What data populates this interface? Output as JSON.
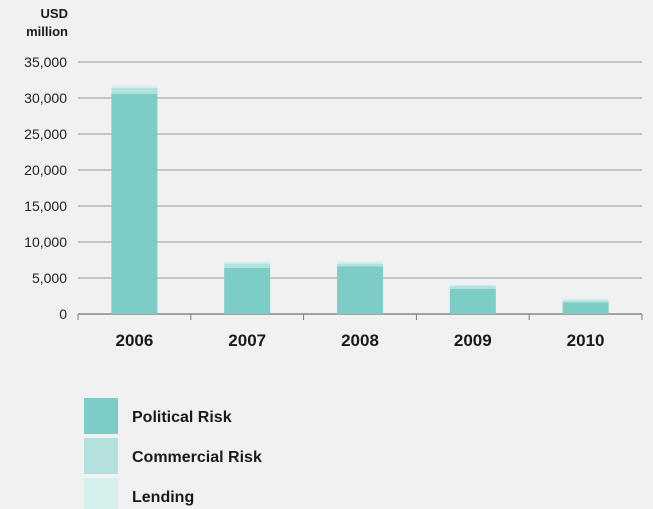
{
  "chart_data": {
    "type": "bar",
    "stacked": true,
    "y_unit_label": [
      "USD",
      "million"
    ],
    "categories": [
      "2006",
      "2007",
      "2008",
      "2009",
      "2010"
    ],
    "ylim": [
      0,
      35000
    ],
    "yticks": [
      0,
      5000,
      10000,
      15000,
      20000,
      25000,
      30000,
      35000
    ],
    "ytick_labels": [
      "0",
      "5,000",
      "10,000",
      "15,000",
      "20,000",
      "25,000",
      "30,000",
      "35,000"
    ],
    "grid": true,
    "legend_position": "bottom-left",
    "series": [
      {
        "name": "Political Risk",
        "color": "#7ccdc6",
        "values": [
          30600,
          6400,
          6600,
          3500,
          1600
        ]
      },
      {
        "name": "Commercial Risk",
        "color": "#b3e2de",
        "values": [
          800,
          600,
          400,
          400,
          300
        ]
      },
      {
        "name": "Lending",
        "color": "#d5efec",
        "values": [
          300,
          300,
          300,
          200,
          200
        ]
      }
    ]
  }
}
